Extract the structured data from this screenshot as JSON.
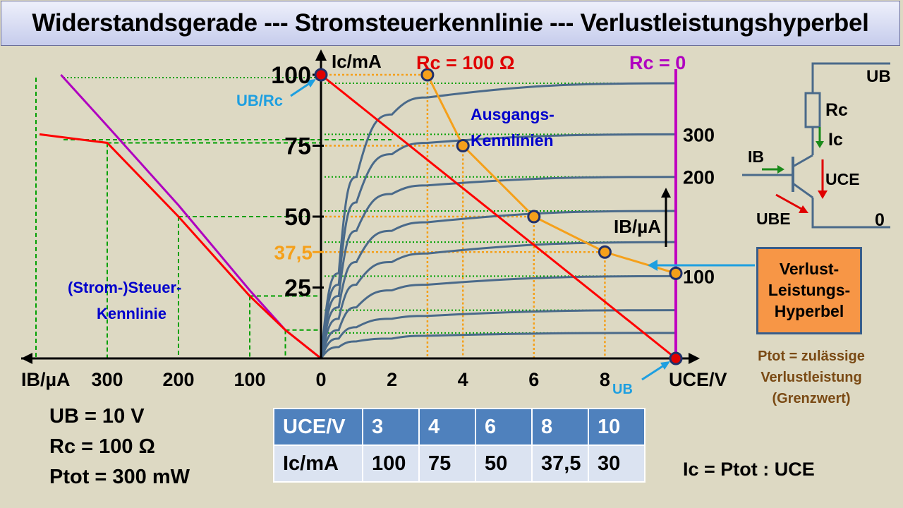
{
  "title": "Widerstandsgerade --- Stromsteuerkennlinie --- Verlustleistungshyperbel",
  "axes": {
    "ic_label": "Ic/mA",
    "uce_label": "UCE/V",
    "ib_label": "IB/µA",
    "ib_up_label": "IB/µA",
    "ub_marker": "UB",
    "ub_rc_marker": "UB/Rc"
  },
  "labels": {
    "rc_line": "Rc = 100 Ω",
    "rc_zero": "Rc = 0",
    "output_curves": [
      "Ausgangs-",
      "Kennlinien"
    ],
    "control_curve": [
      "(Strom-)Steuer-",
      "Kennlinie"
    ]
  },
  "circuit": {
    "ub": "UB",
    "rc": "Rc",
    "ic": "Ic",
    "ib": "IB",
    "uce": "UCE",
    "ube": "UBE",
    "zero": "0"
  },
  "hyperbel_box": "Verlust-\nLeistungs-\nHyperbel",
  "ptot_note": "Ptot = zulässige\nVerlustleistung\n(Grenzwert)",
  "params": [
    "UB = 10 V",
    "Rc = 100 Ω",
    "Ptot = 300 mW"
  ],
  "table": {
    "row1": [
      "UCE/V",
      "3",
      "4",
      "6",
      "8",
      "10"
    ],
    "row2": [
      "Ic/mA",
      "100",
      "75",
      "50",
      "37,5",
      "30"
    ]
  },
  "formula": "Ic = Ptot : UCE",
  "colors": {
    "load_line": "#ff0000",
    "control_curve": "#ff0000",
    "control_curve_alt": "#b000c0",
    "output_curves": "#4a6a8a",
    "hyperbola": "#f5a01a",
    "grid_green": "#00a000",
    "rc_zero": "#c000c0",
    "accent_blue": "#1e9fe0",
    "label_blue": "#0000cc"
  },
  "chart_data": {
    "type": "line",
    "title": "Widerstandsgerade --- Stromsteuerkennlinie --- Verlustleistungshyperbel",
    "xlabel": "UCE/V",
    "ylabel": "Ic/mA",
    "x_ticks": [
      0,
      2,
      4,
      6,
      8
    ],
    "y_ticks": [
      25,
      50,
      75,
      100
    ],
    "y_tick_highlight": [
      37.5
    ],
    "ib_ticks_left": [
      300,
      200,
      100,
      0
    ],
    "ib_curve_labels": [
      300,
      200,
      100
    ],
    "xlim": [
      0,
      10
    ],
    "ylim": [
      0,
      100
    ],
    "load_line": {
      "name": "Rc = 100 Ω",
      "x": [
        0,
        10
      ],
      "y": [
        100,
        0
      ]
    },
    "hyperbola": {
      "x": [
        3,
        4,
        6,
        8,
        10
      ],
      "y": [
        100,
        75,
        50,
        37.5,
        30
      ]
    },
    "output_curves": [
      {
        "x": [
          0,
          0.5,
          1,
          2,
          3,
          10
        ],
        "y": [
          0,
          4,
          6,
          7,
          8,
          9
        ]
      },
      {
        "x": [
          0,
          0.5,
          1,
          2,
          3,
          10
        ],
        "y": [
          0,
          7,
          11,
          14,
          15,
          17
        ]
      },
      {
        "x": [
          0,
          0.5,
          1,
          2,
          3,
          10
        ],
        "y": [
          0,
          10,
          18,
          24,
          26,
          29
        ]
      },
      {
        "x": [
          0,
          0.5,
          1,
          2,
          3,
          10
        ],
        "y": [
          0,
          14,
          26,
          34,
          37,
          41
        ]
      },
      {
        "x": [
          0,
          0.5,
          1,
          2,
          3,
          10
        ],
        "y": [
          0,
          18,
          34,
          45,
          48,
          52
        ]
      },
      {
        "x": [
          0,
          0.5,
          1,
          2,
          3,
          10
        ],
        "y": [
          0,
          22,
          45,
          58,
          61,
          64
        ]
      },
      {
        "x": [
          0,
          0.5,
          1,
          2,
          3,
          10
        ],
        "y": [
          0,
          26,
          55,
          72,
          76,
          79
        ]
      },
      {
        "x": [
          0,
          0.5,
          1,
          2,
          3,
          10
        ],
        "y": [
          0,
          30,
          64,
          86,
          92,
          97
        ]
      }
    ],
    "control_curve": {
      "ib": [
        0,
        50,
        100,
        200,
        300,
        395
      ],
      "ic": [
        0,
        10,
        22,
        50,
        76,
        79
      ]
    },
    "control_curve_alt": {
      "ib": [
        0,
        50,
        100,
        200,
        300,
        365
      ],
      "ic": [
        0,
        10,
        24,
        54,
        82,
        100
      ]
    }
  }
}
